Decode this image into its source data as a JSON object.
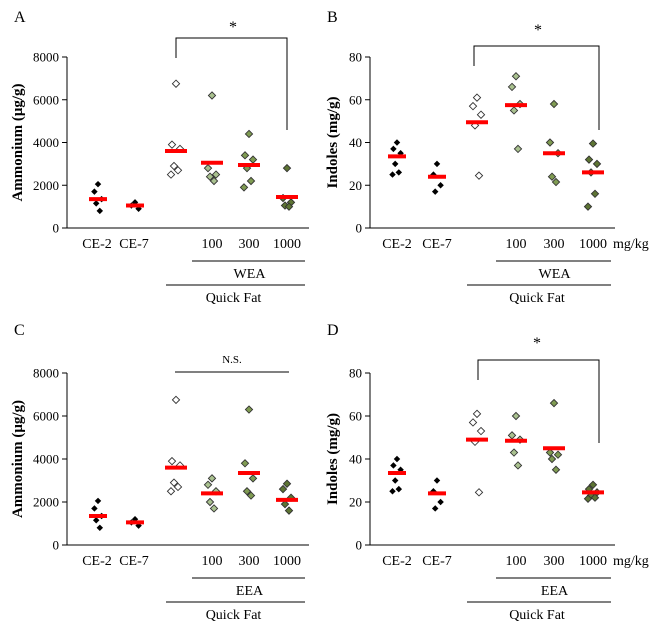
{
  "colors": {
    "mean_bar": "#ff0000",
    "ce_marker_fill": "#000000",
    "control_marker_fill": "#ffffff",
    "dose100_marker_fill": "#a9c18f",
    "dose300_marker_fill": "#7f9b52",
    "dose1000_marker_fill": "#5d7433",
    "marker_stroke": "#333333",
    "axis": "#000000"
  },
  "chart_data": [
    {
      "panel": "A",
      "type": "scatter",
      "ylabel": "Ammonium (μg/g)",
      "ylim": [
        0,
        8000
      ],
      "yticks": [
        0,
        2000,
        4000,
        6000,
        8000
      ],
      "categories": [
        "CE-2",
        "CE-7",
        "",
        "100",
        "300",
        "1000"
      ],
      "unit_label": "",
      "group_label": "WEA",
      "outer_label": "Quick Fat",
      "significance": "*",
      "means": [
        1350,
        1050,
        3600,
        3050,
        2950,
        1450
      ],
      "points": [
        [
          2050,
          1700,
          1350,
          1150,
          800
        ],
        [
          1200,
          1050,
          900
        ],
        [
          6750,
          3900,
          3700,
          2900,
          2700,
          2500
        ],
        [
          6200,
          2800,
          2500,
          2400,
          2200
        ],
        [
          4400,
          3400,
          3200,
          2800,
          2200,
          1900
        ],
        [
          2800,
          1400,
          1200,
          1050,
          1000
        ]
      ]
    },
    {
      "panel": "B",
      "type": "scatter",
      "ylabel": "Indoles (mg/g)",
      "ylim": [
        0,
        80
      ],
      "yticks": [
        0,
        20,
        40,
        60,
        80
      ],
      "categories": [
        "CE-2",
        "CE-7",
        "",
        "100",
        "300",
        "1000"
      ],
      "unit_label": "mg/kg",
      "group_label": "WEA",
      "outer_label": "Quick Fat",
      "significance": "*",
      "means": [
        33.5,
        24,
        49.5,
        57.5,
        35,
        26
      ],
      "points": [
        [
          40,
          37,
          35,
          30,
          26,
          25
        ],
        [
          30,
          25,
          20,
          17
        ],
        [
          61,
          57,
          53,
          48,
          24.5
        ],
        [
          71,
          66,
          58,
          55,
          37
        ],
        [
          58,
          40,
          35,
          24,
          21.5
        ],
        [
          39.5,
          32,
          30,
          26,
          16,
          10
        ]
      ]
    },
    {
      "panel": "C",
      "type": "scatter",
      "ylabel": "Ammonium (μg/g)",
      "ylim": [
        0,
        8000
      ],
      "yticks": [
        0,
        2000,
        4000,
        6000,
        8000
      ],
      "categories": [
        "CE-2",
        "CE-7",
        "",
        "100",
        "300",
        "1000"
      ],
      "unit_label": "",
      "group_label": "EEA",
      "outer_label": "Quick Fat",
      "significance": "N.S.",
      "means": [
        1350,
        1050,
        3600,
        2400,
        3350,
        2100
      ],
      "points": [
        [
          2050,
          1700,
          1350,
          1150,
          800
        ],
        [
          1200,
          1050,
          900
        ],
        [
          6750,
          3900,
          3700,
          2900,
          2700,
          2500
        ],
        [
          3100,
          2800,
          2500,
          2000,
          1700
        ],
        [
          6300,
          3800,
          3100,
          2500,
          2300
        ],
        [
          2850,
          2600,
          2200,
          1900,
          1600
        ]
      ]
    },
    {
      "panel": "D",
      "type": "scatter",
      "ylabel": "Indoles (mg/g)",
      "ylim": [
        0,
        80
      ],
      "yticks": [
        0,
        20,
        40,
        60,
        80
      ],
      "categories": [
        "CE-2",
        "CE-7",
        "",
        "100",
        "300",
        "1000"
      ],
      "unit_label": "mg/kg",
      "group_label": "EEA",
      "outer_label": "Quick Fat",
      "significance": "*",
      "means": [
        33.5,
        24,
        49,
        48.5,
        45,
        24.5
      ],
      "points": [
        [
          40,
          37,
          35,
          30,
          26,
          25
        ],
        [
          30,
          25,
          20,
          17
        ],
        [
          61,
          57,
          53,
          48,
          24.5
        ],
        [
          60,
          51,
          49,
          43,
          37
        ],
        [
          66,
          43,
          42,
          40,
          35
        ],
        [
          28,
          26,
          24.5,
          23,
          22,
          21.5
        ]
      ]
    }
  ]
}
